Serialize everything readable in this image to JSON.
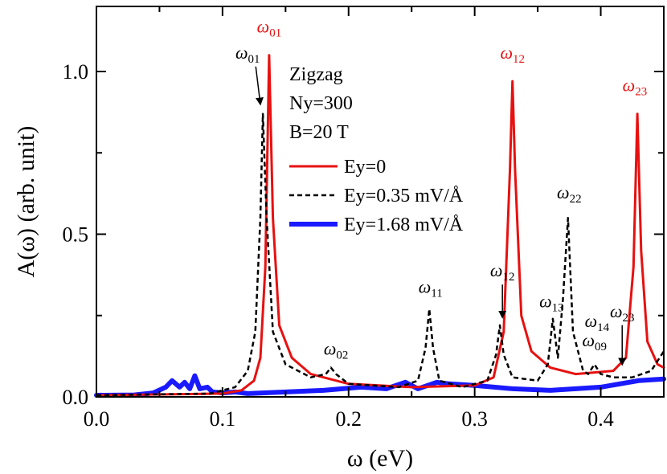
{
  "chart_data": {
    "type": "line",
    "xlabel": "ω (eV)",
    "ylabel": "A(ω) (arb. unit)",
    "xlim": [
      0.0,
      0.45
    ],
    "ylim": [
      0.0,
      1.2
    ],
    "x_ticks": [
      "0.0",
      "0.1",
      "0.2",
      "0.3",
      "0.4"
    ],
    "y_ticks": [
      "0.0",
      "0.5",
      "1.0"
    ],
    "legend": {
      "placement": "top-center",
      "header": [
        "Zigzag",
        "Ny=300",
        "B=20 T"
      ]
    },
    "series": [
      {
        "name": "Ey=0",
        "color": "#e81010",
        "style": "solid",
        "x": [
          0.0,
          0.1,
          0.115,
          0.125,
          0.13,
          0.134,
          0.137,
          0.14,
          0.145,
          0.155,
          0.17,
          0.2,
          0.25,
          0.3,
          0.315,
          0.323,
          0.328,
          0.33,
          0.332,
          0.337,
          0.345,
          0.36,
          0.38,
          0.41,
          0.42,
          0.426,
          0.429,
          0.432,
          0.437,
          0.445,
          0.45
        ],
        "values": [
          0.005,
          0.01,
          0.02,
          0.05,
          0.12,
          0.4,
          1.05,
          0.55,
          0.22,
          0.12,
          0.07,
          0.04,
          0.03,
          0.035,
          0.06,
          0.2,
          0.7,
          0.97,
          0.7,
          0.25,
          0.14,
          0.09,
          0.07,
          0.08,
          0.12,
          0.4,
          0.87,
          0.45,
          0.17,
          0.1,
          0.09
        ]
      },
      {
        "name": "Ey=0.35 mV/Å",
        "color": "#000000",
        "style": "dashed",
        "x": [
          0.0,
          0.09,
          0.11,
          0.12,
          0.126,
          0.13,
          0.132,
          0.135,
          0.14,
          0.15,
          0.17,
          0.182,
          0.186,
          0.19,
          0.2,
          0.24,
          0.255,
          0.261,
          0.264,
          0.267,
          0.272,
          0.29,
          0.31,
          0.317,
          0.32,
          0.323,
          0.33,
          0.35,
          0.358,
          0.362,
          0.366,
          0.37,
          0.374,
          0.378,
          0.386,
          0.39,
          0.395,
          0.4,
          0.41,
          0.425,
          0.44,
          0.45
        ],
        "values": [
          0.005,
          0.01,
          0.03,
          0.08,
          0.2,
          0.55,
          0.87,
          0.55,
          0.2,
          0.1,
          0.06,
          0.07,
          0.09,
          0.07,
          0.04,
          0.03,
          0.05,
          0.15,
          0.27,
          0.15,
          0.05,
          0.03,
          0.05,
          0.13,
          0.22,
          0.13,
          0.06,
          0.05,
          0.1,
          0.24,
          0.12,
          0.3,
          0.55,
          0.2,
          0.08,
          0.07,
          0.1,
          0.07,
          0.06,
          0.06,
          0.08,
          0.14
        ]
      },
      {
        "name": "Ey=1.68 mV/Å",
        "color": "#1a1aff",
        "style": "thick",
        "x": [
          0.0,
          0.03,
          0.045,
          0.055,
          0.06,
          0.066,
          0.07,
          0.074,
          0.078,
          0.082,
          0.088,
          0.092,
          0.1,
          0.11,
          0.12,
          0.15,
          0.18,
          0.21,
          0.23,
          0.245,
          0.255,
          0.27,
          0.28,
          0.3,
          0.33,
          0.36,
          0.4,
          0.43,
          0.45
        ],
        "values": [
          0.005,
          0.006,
          0.012,
          0.03,
          0.05,
          0.03,
          0.045,
          0.025,
          0.065,
          0.025,
          0.03,
          0.015,
          0.012,
          0.015,
          0.01,
          0.015,
          0.02,
          0.03,
          0.025,
          0.045,
          0.025,
          0.045,
          0.04,
          0.035,
          0.025,
          0.02,
          0.03,
          0.05,
          0.055
        ]
      }
    ],
    "annotations": [
      {
        "base": "ω",
        "sub": "01",
        "color": "#e81010",
        "x": 0.137,
        "y": 1.12
      },
      {
        "base": "ω",
        "sub": "12",
        "color": "#e81010",
        "x": 0.33,
        "y": 1.04
      },
      {
        "base": "ω",
        "sub": "23",
        "color": "#e81010",
        "x": 0.427,
        "y": 0.94
      },
      {
        "base": "ω",
        "sub": "01",
        "color": "#000000",
        "x": 0.12,
        "y": 1.04,
        "arrow_to": [
          0.13,
          0.9
        ]
      },
      {
        "base": "ω",
        "sub": "02",
        "color": "#000000",
        "x": 0.19,
        "y": 0.13
      },
      {
        "base": "ω",
        "sub": "11",
        "color": "#000000",
        "x": 0.265,
        "y": 0.32
      },
      {
        "base": "ω",
        "sub": "22",
        "color": "#000000",
        "x": 0.375,
        "y": 0.61
      },
      {
        "base": "ω",
        "sub": "12",
        "color": "#000000",
        "x": 0.322,
        "y": 0.37,
        "arrow_to": [
          0.322,
          0.245
        ]
      },
      {
        "base": "ω",
        "sub": "13",
        "color": "#000000",
        "x": 0.361,
        "y": 0.275
      },
      {
        "base": "ω",
        "sub": "14",
        "color": "#000000",
        "x": 0.397,
        "y": 0.215
      },
      {
        "base": "ω",
        "sub": "09",
        "color": "#000000",
        "x": 0.395,
        "y": 0.155
      },
      {
        "base": "ω",
        "sub": "23",
        "color": "#000000",
        "x": 0.417,
        "y": 0.245,
        "arrow_to": [
          0.417,
          0.1
        ]
      }
    ]
  }
}
